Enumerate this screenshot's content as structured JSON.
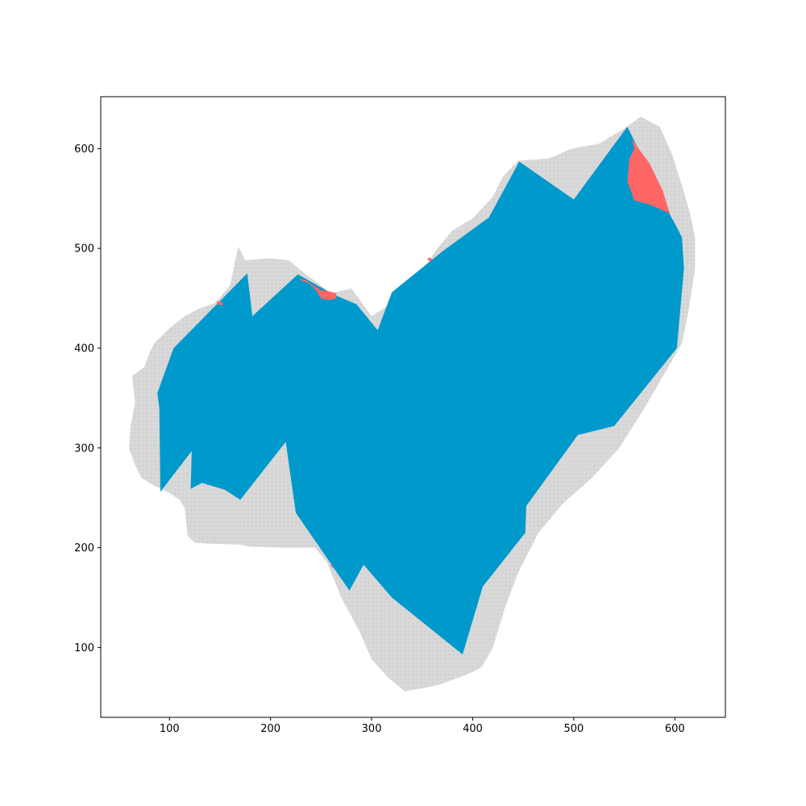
{
  "chart_data": {
    "type": "area",
    "title": "",
    "xlabel": "",
    "ylabel": "",
    "xlim": [
      32,
      650
    ],
    "ylim": [
      30,
      652
    ],
    "grid": false,
    "legend": "none",
    "xticks": [
      100,
      200,
      300,
      400,
      500,
      600
    ],
    "yticks": [
      100,
      200,
      300,
      400,
      500,
      600
    ],
    "xtick_labels": [
      "100",
      "200",
      "300",
      "400",
      "500",
      "600"
    ],
    "ytick_labels": [
      "100",
      "200",
      "300",
      "400",
      "500",
      "600"
    ],
    "colors": {
      "background_region": "#d9d9d9",
      "covered_region": "#0099cc",
      "uncovered_region": "#ff6666",
      "axes": "#000000"
    },
    "series": [
      {
        "role": "background_region",
        "polygons": [
          [
            [
              333,
              56
            ],
            [
              316,
              70
            ],
            [
              300,
              88
            ],
            [
              288,
              116
            ],
            [
              270,
              150
            ],
            [
              256,
              185
            ],
            [
              244,
              200
            ],
            [
              215,
              200
            ],
            [
              180,
              201
            ],
            [
              170,
              203
            ],
            [
              140,
              204
            ],
            [
              125,
              205
            ],
            [
              118,
              212
            ],
            [
              115,
              240
            ],
            [
              110,
              248
            ],
            [
              100,
              255
            ],
            [
              85,
              262
            ],
            [
              72,
              270
            ],
            [
              65,
              285
            ],
            [
              60,
              300
            ],
            [
              62,
              325
            ],
            [
              66,
              345
            ],
            [
              63,
              372
            ],
            [
              75,
              381
            ],
            [
              80,
              395
            ],
            [
              85,
              405
            ],
            [
              100,
              420
            ],
            [
              115,
              432
            ],
            [
              130,
              440
            ],
            [
              145,
              445
            ],
            [
              160,
              463
            ],
            [
              168,
              502
            ],
            [
              175,
              488
            ],
            [
              200,
              490
            ],
            [
              218,
              488
            ],
            [
              235,
              474
            ],
            [
              260,
              455
            ],
            [
              280,
              460
            ],
            [
              300,
              432
            ],
            [
              320,
              445
            ],
            [
              350,
              478
            ],
            [
              365,
              500
            ],
            [
              380,
              518
            ],
            [
              400,
              530
            ],
            [
              420,
              552
            ],
            [
              430,
              572
            ],
            [
              445,
              588
            ],
            [
              475,
              590
            ],
            [
              498,
              600
            ],
            [
              525,
              605
            ],
            [
              550,
              620
            ],
            [
              566,
              632
            ],
            [
              585,
              622
            ],
            [
              597,
              595
            ],
            [
              608,
              560
            ],
            [
              615,
              535
            ],
            [
              620,
              510
            ],
            [
              620,
              480
            ],
            [
              614,
              440
            ],
            [
              607,
              405
            ],
            [
              590,
              375
            ],
            [
              570,
              340
            ],
            [
              545,
              300
            ],
            [
              518,
              270
            ],
            [
              490,
              245
            ],
            [
              465,
              215
            ],
            [
              445,
              175
            ],
            [
              432,
              140
            ],
            [
              420,
              100
            ],
            [
              410,
              82
            ],
            [
              405,
              78
            ],
            [
              392,
              72
            ],
            [
              365,
              62
            ]
          ]
        ]
      },
      {
        "role": "covered_region",
        "polygons": [
          [
            [
              88,
              355
            ],
            [
              90,
              340
            ],
            [
              91,
              256
            ],
            [
              122,
              297
            ],
            [
              121,
              259
            ],
            [
              132,
              265
            ],
            [
              155,
              258
            ],
            [
              170,
              248
            ],
            [
              215,
              306
            ],
            [
              225,
              235
            ],
            [
              278,
              157
            ],
            [
              292,
              183
            ],
            [
              320,
              150
            ],
            [
              390,
              93
            ],
            [
              410,
              161
            ],
            [
              452,
              215
            ],
            [
              453,
              242
            ],
            [
              504,
              313
            ],
            [
              540,
              322
            ],
            [
              602,
              400
            ],
            [
              609,
              480
            ],
            [
              607,
              511
            ],
            [
              600,
              525
            ],
            [
              596,
              532
            ],
            [
              553,
              622
            ],
            [
              500,
              549
            ],
            [
              446,
              587
            ],
            [
              416,
              531
            ],
            [
              370,
              497
            ],
            [
              320,
              456
            ],
            [
              306,
              418
            ],
            [
              285,
              444
            ],
            [
              262,
              454
            ],
            [
              227,
              474
            ],
            [
              182,
              432
            ],
            [
              177,
              475
            ],
            [
              104,
              400
            ]
          ]
        ]
      },
      {
        "role": "uncovered_region",
        "polygons": [
          [
            [
              557,
              610
            ],
            [
              560,
              600
            ],
            [
              555,
              590
            ],
            [
              553,
              567
            ],
            [
              560,
              548
            ],
            [
              575,
              544
            ],
            [
              595,
              535
            ],
            [
              588,
              558
            ],
            [
              575,
              585
            ]
          ],
          [
            [
              227,
              470
            ],
            [
              235,
              468
            ],
            [
              242,
              463
            ],
            [
              250,
              458
            ],
            [
              258,
              457
            ],
            [
              265,
              455
            ],
            [
              265,
              450
            ],
            [
              258,
              448
            ],
            [
              250,
              450
            ],
            [
              245,
              458
            ],
            [
              238,
              465
            ],
            [
              230,
              468
            ]
          ],
          [
            [
              147,
              447
            ],
            [
              152,
              446
            ],
            [
              153,
              443
            ],
            [
              147,
              444
            ]
          ],
          [
            [
              357,
              491
            ],
            [
              360,
              489
            ],
            [
              358,
              487
            ],
            [
              355,
              489
            ]
          ],
          [
            [
              260,
              183
            ],
            [
              262,
              180
            ],
            [
              264,
              178
            ],
            [
              261,
              180
            ],
            [
              259,
              182
            ]
          ]
        ]
      }
    ]
  }
}
